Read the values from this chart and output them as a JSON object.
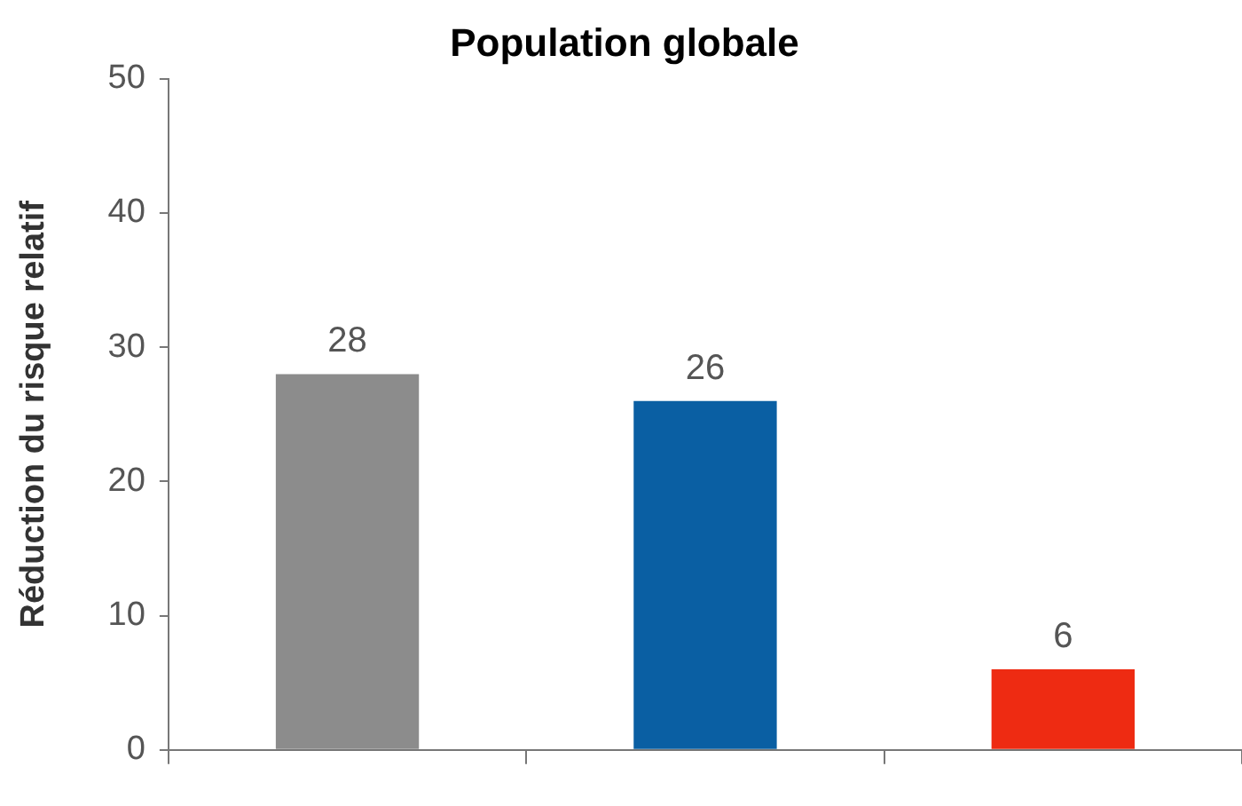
{
  "chart_data": {
    "type": "bar",
    "title": "Population globale",
    "ylabel": "Réduction du risque relatif",
    "categories": [
      null,
      null,
      null
    ],
    "values": [
      28,
      26,
      6
    ],
    "colors": [
      "#8c8c8c",
      "#0a5fa3",
      "#ee2b12"
    ],
    "ylim": [
      0,
      50
    ],
    "yticks": [
      0,
      10,
      20,
      30,
      40,
      50
    ],
    "data_labels": true,
    "grid": false,
    "legend": false
  }
}
